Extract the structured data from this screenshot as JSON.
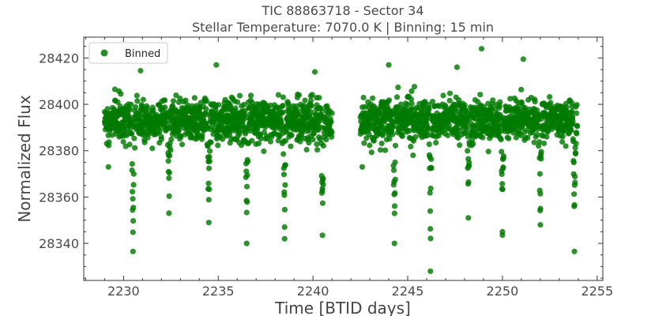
{
  "chart_data": {
    "type": "scatter",
    "title": "TIC 88863718 - Sector 34",
    "subtitle": "Stellar Temperature: 7070.0 K | Binning: 15 min",
    "xlabel": "Time [BTID days]",
    "ylabel": "Normalized Flux",
    "xlim": [
      2227.9,
      2255.3
    ],
    "ylim": [
      28324,
      28429
    ],
    "xticks": [
      2230,
      2235,
      2240,
      2245,
      2250,
      2255
    ],
    "yticks": [
      28340,
      28360,
      28380,
      28400,
      28420
    ],
    "grid": false,
    "legend": {
      "position": "top-left",
      "entries": [
        "Binned"
      ]
    },
    "series": [
      {
        "name": "Binned",
        "color": "#007a00",
        "baseline": 28393,
        "segments": [
          [
            2229.0,
            2241.0
          ],
          [
            2242.5,
            2253.95
          ]
        ],
        "dips": [
          {
            "x": 2230.5,
            "y": 28336.5
          },
          {
            "x": 2232.4,
            "y": 28353
          },
          {
            "x": 2234.5,
            "y": 28349
          },
          {
            "x": 2236.5,
            "y": 28340
          },
          {
            "x": 2238.5,
            "y": 28342
          },
          {
            "x": 2240.5,
            "y": 28343.5
          },
          {
            "x": 2244.3,
            "y": 28340
          },
          {
            "x": 2246.2,
            "y": 28328
          },
          {
            "x": 2248.2,
            "y": 28351
          },
          {
            "x": 2250.0,
            "y": 28345
          },
          {
            "x": 2252.0,
            "y": 28348
          },
          {
            "x": 2253.8,
            "y": 28336.5
          }
        ],
        "outliers": [
          {
            "x": 2248.9,
            "y": 28424
          },
          {
            "x": 2251.1,
            "y": 28419.5
          },
          {
            "x": 2244.0,
            "y": 28417
          },
          {
            "x": 2234.9,
            "y": 28417
          },
          {
            "x": 2230.9,
            "y": 28414.5
          },
          {
            "x": 2247.6,
            "y": 28416
          },
          {
            "x": 2240.1,
            "y": 28414
          },
          {
            "x": 2229.2,
            "y": 28373
          },
          {
            "x": 2242.6,
            "y": 28373
          }
        ]
      }
    ]
  }
}
